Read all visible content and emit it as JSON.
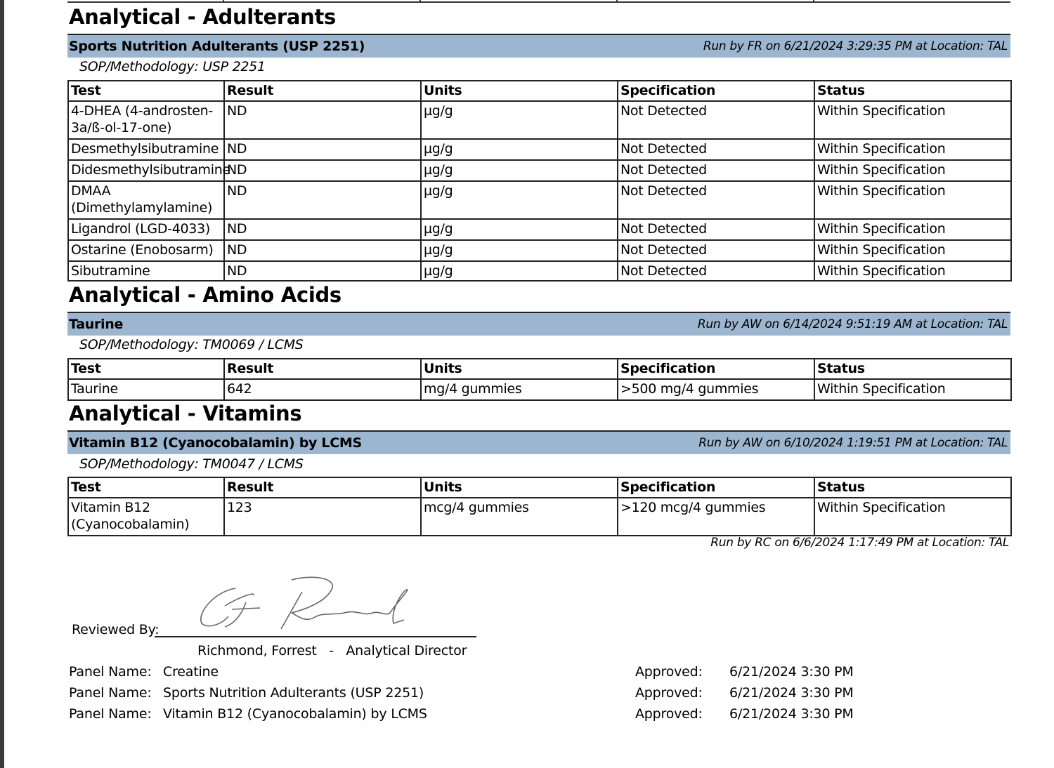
{
  "sections": [
    {
      "title": "Analytical - Adulterants",
      "panel": "Sports Nutrition Adulterants (USP 2251)",
      "run": "Run by FR on 6/21/2024 3:29:35 PM at Location: TAL",
      "sop": "SOP/Methodology: USP 2251",
      "headers": [
        "Test",
        "Result",
        "Units",
        "Specification",
        "Status"
      ],
      "rows": [
        [
          "4-DHEA (4-androsten-3a/ß-ol-17-one)",
          "ND",
          "µg/g",
          "Not Detected",
          "Within Specification"
        ],
        [
          "Desmethylsibutramine",
          "ND",
          "µg/g",
          "Not Detected",
          "Within Specification"
        ],
        [
          "Didesmethylsibutramine",
          "ND",
          "µg/g",
          "Not Detected",
          "Within Specification"
        ],
        [
          "DMAA (Dimethylamylamine)",
          "ND",
          "µg/g",
          "Not Detected",
          "Within Specification"
        ],
        [
          "Ligandrol (LGD-4033)",
          "ND",
          "µg/g",
          "Not Detected",
          "Within Specification"
        ],
        [
          "Ostarine (Enobosarm)",
          "ND",
          "µg/g",
          "Not Detected",
          "Within Specification"
        ],
        [
          "Sibutramine",
          "ND",
          "µg/g",
          "Not Detected",
          "Within Specification"
        ]
      ]
    },
    {
      "title": "Analytical - Amino Acids",
      "panel": "Taurine",
      "run": "Run by AW on 6/14/2024 9:51:19 AM at Location: TAL",
      "sop": "SOP/Methodology: TM0069 / LCMS",
      "headers": [
        "Test",
        "Result",
        "Units",
        "Specification",
        "Status"
      ],
      "rows": [
        [
          "Taurine",
          "642",
          "mg/4 gummies",
          ">500 mg/4 gummies",
          "Within Specification"
        ]
      ]
    },
    {
      "title": "Analytical - Vitamins",
      "panel": "Vitamin B12 (Cyanocobalamin) by LCMS",
      "run": "Run by AW on 6/10/2024 1:19:51 PM at Location: TAL",
      "sop": "SOP/Methodology: TM0047 / LCMS",
      "headers": [
        "Test",
        "Result",
        "Units",
        "Specification",
        "Status"
      ],
      "rows": [
        [
          "Vitamin B12 (Cyanocobalamin)",
          "123",
          "mcg/4 gummies",
          ">120 mcg/4 gummies",
          "Within Specification"
        ]
      ]
    }
  ],
  "extra_run": "Run by RC on 6/6/2024 1:17:49 PM at Location: TAL",
  "review": {
    "label": "Reviewed By:",
    "signature_text": "C.F. Richmond",
    "reviewer": "Richmond, Forrest   -   Analytical Director"
  },
  "approvals": [
    {
      "label": "Panel Name:",
      "panel": "Creatine",
      "approved_label": "Approved:",
      "date": "6/21/2024 3:30 PM"
    },
    {
      "label": "Panel Name:",
      "panel": "Sports Nutrition Adulterants (USP 2251)",
      "approved_label": "Approved:",
      "date": "6/21/2024 3:30 PM"
    },
    {
      "label": "Panel Name:",
      "panel": "Vitamin B12 (Cyanocobalamin) by LCMS",
      "approved_label": "Approved:",
      "date": "6/21/2024 3:30 PM"
    }
  ],
  "colors": {
    "band": "#9cb6cf"
  }
}
